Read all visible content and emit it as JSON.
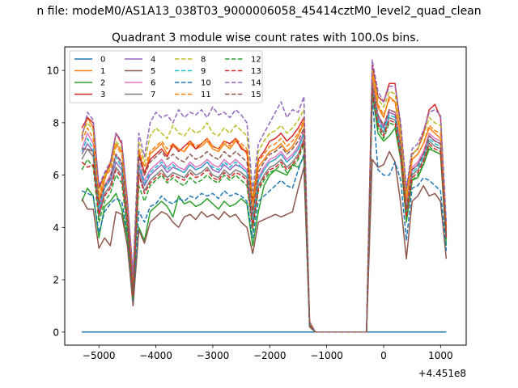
{
  "chart_data": {
    "type": "line",
    "supertitle": "n file: modeM0/AS1A13_038T03_9000006058_45414cztM0_level2_quad_clean",
    "title": "Quadrant 3 module wise count rates with 100.0s bins.",
    "xlabel": "",
    "ylabel": "",
    "x_offset_label": "+4.451e8",
    "xlim": [
      -5600,
      1450
    ],
    "ylim": [
      -0.5,
      10.9
    ],
    "xticks": [
      -5000,
      -4000,
      -3000,
      -2000,
      -1000,
      0,
      1000
    ],
    "xtick_labels": [
      "−5000",
      "−4000",
      "−3000",
      "−2000",
      "−1000",
      "0",
      "1000"
    ],
    "yticks": [
      0,
      2,
      4,
      6,
      8,
      10
    ],
    "ytick_labels": [
      "0",
      "2",
      "4",
      "6",
      "8",
      "10"
    ],
    "grid": false,
    "legend_position": "top-left",
    "legend_columns": 4,
    "x": [
      -5300,
      -5200,
      -5100,
      -5000,
      -4900,
      -4800,
      -4700,
      -4600,
      -4500,
      -4400,
      -4300,
      -4200,
      -4100,
      -4000,
      -3900,
      -3800,
      -3700,
      -3600,
      -3500,
      -3400,
      -3300,
      -3200,
      -3100,
      -3000,
      -2900,
      -2800,
      -2700,
      -2600,
      -2500,
      -2400,
      -2300,
      -2200,
      -2100,
      -2000,
      -1900,
      -1800,
      -1700,
      -1600,
      -1500,
      -1400,
      -1300,
      -1200,
      -300,
      -200,
      -100,
      0,
      100,
      200,
      300,
      400,
      500,
      600,
      700,
      800,
      900,
      1000,
      1100
    ],
    "series": [
      {
        "name": "0",
        "color": "#1f77b4",
        "dash": "solid",
        "values": [
          0,
          0,
          0,
          0,
          0,
          0,
          0,
          0,
          0,
          0,
          0,
          0,
          0,
          0,
          0,
          0,
          0,
          0,
          0,
          0,
          0,
          0,
          0,
          0,
          0,
          0,
          0,
          0,
          0,
          0,
          0,
          0,
          0,
          0,
          0,
          0,
          0,
          0,
          0,
          0,
          0,
          0,
          0,
          0,
          0,
          0,
          0,
          0,
          0,
          0,
          0,
          0,
          0,
          0,
          0,
          0,
          0
        ]
      },
      {
        "name": "1",
        "color": "#ff7f0e",
        "dash": "solid",
        "values": [
          7.5,
          8.2,
          7.8,
          5.0,
          5.8,
          6.5,
          7.2,
          6.9,
          4.8,
          1.9,
          7.0,
          6.0,
          6.8,
          7.0,
          7.2,
          6.8,
          7.1,
          7.0,
          6.9,
          7.2,
          7.0,
          7.1,
          7.3,
          7.0,
          6.9,
          7.2,
          7.0,
          7.3,
          7.1,
          6.8,
          4.6,
          6.3,
          6.6,
          6.9,
          7.0,
          7.2,
          6.9,
          7.1,
          7.5,
          8.0,
          0.3,
          0,
          0,
          9.8,
          8.6,
          8.2,
          9.0,
          8.8,
          7.5,
          5.0,
          6.6,
          6.8,
          7.2,
          7.8,
          7.6,
          7.4,
          3.9
        ]
      },
      {
        "name": "2",
        "color": "#2ca02c",
        "dash": "solid",
        "values": [
          5.0,
          5.5,
          5.2,
          3.6,
          4.8,
          5.0,
          5.3,
          4.7,
          3.6,
          1.1,
          4.0,
          3.5,
          4.6,
          4.8,
          5.0,
          4.8,
          4.4,
          5.2,
          4.9,
          5.0,
          4.8,
          4.9,
          5.1,
          4.9,
          4.7,
          5.0,
          4.8,
          4.9,
          5.1,
          4.9,
          3.3,
          4.6,
          5.6,
          6.0,
          6.2,
          6.1,
          6.0,
          6.4,
          6.3,
          6.7,
          0.2,
          0,
          0,
          9.2,
          7.6,
          7.3,
          7.5,
          7.8,
          6.6,
          4.2,
          5.8,
          5.9,
          6.4,
          7.0,
          6.9,
          6.8,
          3.3
        ]
      },
      {
        "name": "3",
        "color": "#d62728",
        "dash": "solid",
        "values": [
          7.8,
          8.2,
          8.0,
          5.5,
          6.0,
          6.4,
          7.6,
          7.2,
          5.0,
          2.1,
          6.8,
          6.1,
          6.6,
          6.8,
          7.0,
          6.7,
          7.2,
          6.9,
          7.1,
          7.3,
          7.0,
          7.2,
          7.4,
          7.1,
          7.0,
          7.3,
          7.2,
          7.4,
          7.0,
          6.9,
          5.0,
          6.6,
          6.9,
          7.3,
          7.4,
          7.6,
          7.3,
          7.5,
          7.8,
          8.2,
          0.4,
          0,
          0,
          10.2,
          9.0,
          8.8,
          9.5,
          9.5,
          7.8,
          5.4,
          6.8,
          7.0,
          7.6,
          8.5,
          8.7,
          8.2,
          4.0
        ]
      },
      {
        "name": "4",
        "color": "#9467bd",
        "dash": "solid",
        "values": [
          6.8,
          7.2,
          6.9,
          4.6,
          5.5,
          5.8,
          6.5,
          6.2,
          4.3,
          1.5,
          6.3,
          5.6,
          6.0,
          6.2,
          6.4,
          6.1,
          6.3,
          6.2,
          6.1,
          6.4,
          6.2,
          6.3,
          6.5,
          6.2,
          6.1,
          6.4,
          6.2,
          6.4,
          6.3,
          6.1,
          4.3,
          5.8,
          6.2,
          6.5,
          6.6,
          6.8,
          6.5,
          6.7,
          7.0,
          7.6,
          0.3,
          0,
          0,
          9.5,
          8.2,
          7.8,
          8.4,
          8.3,
          7.0,
          4.7,
          6.2,
          6.4,
          6.8,
          7.5,
          7.3,
          7.2,
          3.7
        ]
      },
      {
        "name": "5",
        "color": "#8c564b",
        "dash": "solid",
        "values": [
          5.1,
          4.7,
          4.7,
          3.2,
          3.6,
          3.3,
          4.6,
          4.5,
          3.3,
          1.0,
          3.9,
          3.4,
          4.2,
          4.4,
          4.6,
          4.5,
          4.2,
          4.0,
          4.4,
          4.5,
          4.3,
          4.6,
          4.4,
          4.5,
          4.3,
          4.6,
          4.4,
          4.5,
          4.2,
          4.0,
          3.0,
          4.2,
          4.3,
          4.4,
          4.5,
          4.4,
          4.5,
          4.6,
          5.5,
          6.3,
          0.2,
          0,
          0,
          6.6,
          6.3,
          6.4,
          6.9,
          6.5,
          4.9,
          2.8,
          5.0,
          5.2,
          5.6,
          5.2,
          5.3,
          5.0,
          2.8
        ]
      },
      {
        "name": "6",
        "color": "#e377c2",
        "dash": "solid",
        "values": [
          7.0,
          7.6,
          7.2,
          4.8,
          5.6,
          6.0,
          6.8,
          6.4,
          4.5,
          1.6,
          6.5,
          5.8,
          6.2,
          6.4,
          6.6,
          6.3,
          6.5,
          6.3,
          6.2,
          6.5,
          6.3,
          6.4,
          6.6,
          6.4,
          6.3,
          6.6,
          6.4,
          6.6,
          6.4,
          6.2,
          4.4,
          5.9,
          6.3,
          6.6,
          6.7,
          6.9,
          6.6,
          6.8,
          7.1,
          7.7,
          0.3,
          0,
          0,
          9.6,
          8.3,
          7.9,
          8.5,
          8.4,
          7.1,
          4.8,
          6.3,
          6.5,
          6.9,
          7.6,
          7.4,
          7.3,
          3.8
        ]
      },
      {
        "name": "7",
        "color": "#7f7f7f",
        "dash": "solid",
        "values": [
          6.6,
          7.0,
          6.7,
          4.4,
          5.3,
          5.6,
          6.3,
          6.0,
          4.1,
          1.4,
          6.1,
          5.4,
          5.8,
          6.0,
          6.2,
          5.9,
          6.1,
          6.0,
          5.9,
          6.2,
          6.0,
          6.1,
          6.3,
          6.0,
          5.9,
          6.2,
          6.0,
          6.2,
          6.1,
          5.9,
          4.1,
          5.6,
          6.0,
          6.3,
          6.4,
          6.6,
          6.3,
          6.5,
          6.8,
          7.4,
          0.3,
          0,
          0,
          9.3,
          8.0,
          7.6,
          8.2,
          8.1,
          6.8,
          4.5,
          6.0,
          6.2,
          6.6,
          7.3,
          7.1,
          7.0,
          3.6
        ]
      },
      {
        "name": "8",
        "color": "#bcbd22",
        "dash": "dash",
        "values": [
          7.6,
          8.0,
          7.7,
          5.3,
          6.0,
          6.3,
          7.3,
          7.0,
          4.9,
          2.0,
          7.3,
          6.5,
          7.5,
          7.8,
          7.6,
          7.4,
          7.9,
          7.6,
          7.5,
          7.8,
          7.6,
          7.7,
          8.0,
          7.6,
          7.5,
          7.8,
          7.6,
          7.9,
          7.7,
          7.5,
          5.2,
          6.9,
          7.3,
          7.6,
          7.7,
          7.9,
          7.6,
          7.8,
          8.1,
          8.5,
          0.4,
          0,
          0,
          10.0,
          8.9,
          8.6,
          9.2,
          9.1,
          7.7,
          5.3,
          6.8,
          7.0,
          7.5,
          8.2,
          8.0,
          7.9,
          4.1
        ]
      },
      {
        "name": "9",
        "color": "#17becf",
        "dash": "dash",
        "values": [
          6.9,
          7.4,
          7.0,
          4.7,
          5.5,
          5.9,
          6.7,
          6.3,
          4.4,
          1.6,
          6.4,
          5.7,
          6.1,
          6.3,
          6.5,
          6.2,
          6.4,
          6.2,
          6.1,
          6.4,
          6.2,
          6.3,
          6.5,
          6.3,
          6.2,
          6.5,
          6.3,
          6.5,
          6.3,
          6.1,
          4.3,
          5.8,
          6.2,
          6.5,
          6.6,
          6.8,
          6.5,
          6.7,
          7.0,
          7.6,
          0.3,
          0,
          0,
          9.4,
          8.1,
          7.7,
          8.3,
          8.2,
          6.9,
          4.6,
          6.1,
          6.3,
          6.7,
          7.4,
          7.2,
          7.1,
          3.7
        ]
      },
      {
        "name": "10",
        "color": "#1f77b4",
        "dash": "dash",
        "values": [
          5.4,
          5.3,
          5.2,
          3.8,
          4.6,
          4.9,
          5.1,
          5.0,
          3.8,
          1.2,
          4.6,
          4.2,
          4.8,
          4.9,
          5.2,
          5.0,
          4.9,
          5.1,
          5.0,
          5.2,
          5.1,
          5.3,
          5.2,
          5.3,
          5.1,
          5.4,
          5.2,
          5.3,
          5.2,
          5.0,
          3.6,
          5.0,
          5.2,
          5.4,
          5.6,
          5.8,
          5.6,
          5.5,
          6.2,
          6.8,
          0.3,
          0,
          0,
          9.0,
          6.2,
          6.0,
          6.0,
          6.5,
          5.8,
          3.5,
          5.5,
          5.6,
          5.9,
          5.8,
          5.6,
          5.4,
          3.1
        ]
      },
      {
        "name": "11",
        "color": "#ff7f0e",
        "dash": "dash",
        "values": [
          7.3,
          7.8,
          7.4,
          5.2,
          5.9,
          6.2,
          7.1,
          6.8,
          4.7,
          1.8,
          7.0,
          6.3,
          6.9,
          7.1,
          7.3,
          7.0,
          7.2,
          7.0,
          6.9,
          7.3,
          7.1,
          7.2,
          7.4,
          7.1,
          7.0,
          7.3,
          7.1,
          7.4,
          7.2,
          7.0,
          4.8,
          6.5,
          6.8,
          7.1,
          7.2,
          7.4,
          7.1,
          7.3,
          7.6,
          8.1,
          0.4,
          0,
          0,
          9.9,
          8.7,
          8.3,
          8.9,
          8.8,
          7.4,
          5.0,
          6.6,
          6.8,
          7.2,
          7.9,
          7.7,
          7.6,
          3.9
        ]
      },
      {
        "name": "12",
        "color": "#2ca02c",
        "dash": "dash",
        "values": [
          6.2,
          6.6,
          6.3,
          4.2,
          5.0,
          5.3,
          6.0,
          5.7,
          3.9,
          1.3,
          5.6,
          5.0,
          5.6,
          5.8,
          6.0,
          5.7,
          5.9,
          5.7,
          5.6,
          5.9,
          5.7,
          5.8,
          6.0,
          5.8,
          5.7,
          6.0,
          5.8,
          6.0,
          5.8,
          5.6,
          3.9,
          5.4,
          5.8,
          6.1,
          6.2,
          6.4,
          6.1,
          6.3,
          6.6,
          7.2,
          0.3,
          0,
          0,
          9.1,
          7.8,
          7.4,
          8.0,
          7.9,
          6.6,
          4.3,
          5.8,
          6.0,
          6.4,
          7.1,
          6.9,
          6.8,
          3.5
        ]
      },
      {
        "name": "13",
        "color": "#d62728",
        "dash": "dash",
        "values": [
          6.5,
          6.3,
          6.4,
          4.5,
          5.2,
          5.5,
          6.2,
          5.9,
          4.2,
          1.4,
          6.0,
          5.3,
          5.7,
          5.9,
          6.1,
          5.8,
          6.0,
          5.9,
          5.8,
          6.1,
          5.9,
          6.0,
          6.2,
          5.9,
          5.8,
          6.1,
          5.9,
          6.1,
          6.0,
          5.8,
          4.0,
          5.5,
          5.9,
          6.2,
          6.3,
          6.5,
          6.2,
          6.4,
          6.7,
          7.3,
          0.3,
          0,
          0,
          9.2,
          7.9,
          7.5,
          8.1,
          8.0,
          6.7,
          4.4,
          5.9,
          6.1,
          6.5,
          7.2,
          7.0,
          6.9,
          3.6
        ]
      },
      {
        "name": "14",
        "color": "#9467bd",
        "dash": "dash",
        "values": [
          7.4,
          8.4,
          8.1,
          5.6,
          6.1,
          6.5,
          7.6,
          7.3,
          5.1,
          2.2,
          7.6,
          6.7,
          8.0,
          8.4,
          8.2,
          8.3,
          8.0,
          8.5,
          8.2,
          8.4,
          8.3,
          8.5,
          8.2,
          8.6,
          8.3,
          8.4,
          8.2,
          8.5,
          8.3,
          8.0,
          5.4,
          7.2,
          7.6,
          8.0,
          8.4,
          8.8,
          8.2,
          8.5,
          8.4,
          9.0,
          0.4,
          0,
          0,
          10.4,
          9.2,
          8.8,
          9.4,
          9.4,
          8.0,
          5.5,
          7.0,
          7.2,
          7.7,
          8.4,
          8.5,
          8.3,
          4.2
        ]
      },
      {
        "name": "15",
        "color": "#8c564b",
        "dash": "dash",
        "values": [
          7.0,
          7.0,
          6.9,
          4.9,
          5.6,
          5.9,
          6.8,
          6.5,
          4.5,
          1.6,
          6.7,
          6.0,
          6.5,
          6.7,
          6.9,
          6.6,
          6.8,
          6.6,
          6.5,
          6.8,
          6.6,
          6.7,
          6.9,
          6.7,
          6.6,
          6.9,
          6.7,
          6.9,
          6.7,
          6.5,
          4.5,
          6.1,
          6.5,
          6.8,
          6.9,
          7.1,
          6.8,
          7.0,
          7.3,
          7.8,
          0.3,
          0,
          0,
          9.5,
          8.3,
          7.9,
          8.5,
          8.4,
          7.1,
          4.7,
          6.2,
          6.4,
          6.8,
          7.5,
          7.3,
          7.2,
          3.7
        ]
      }
    ]
  }
}
